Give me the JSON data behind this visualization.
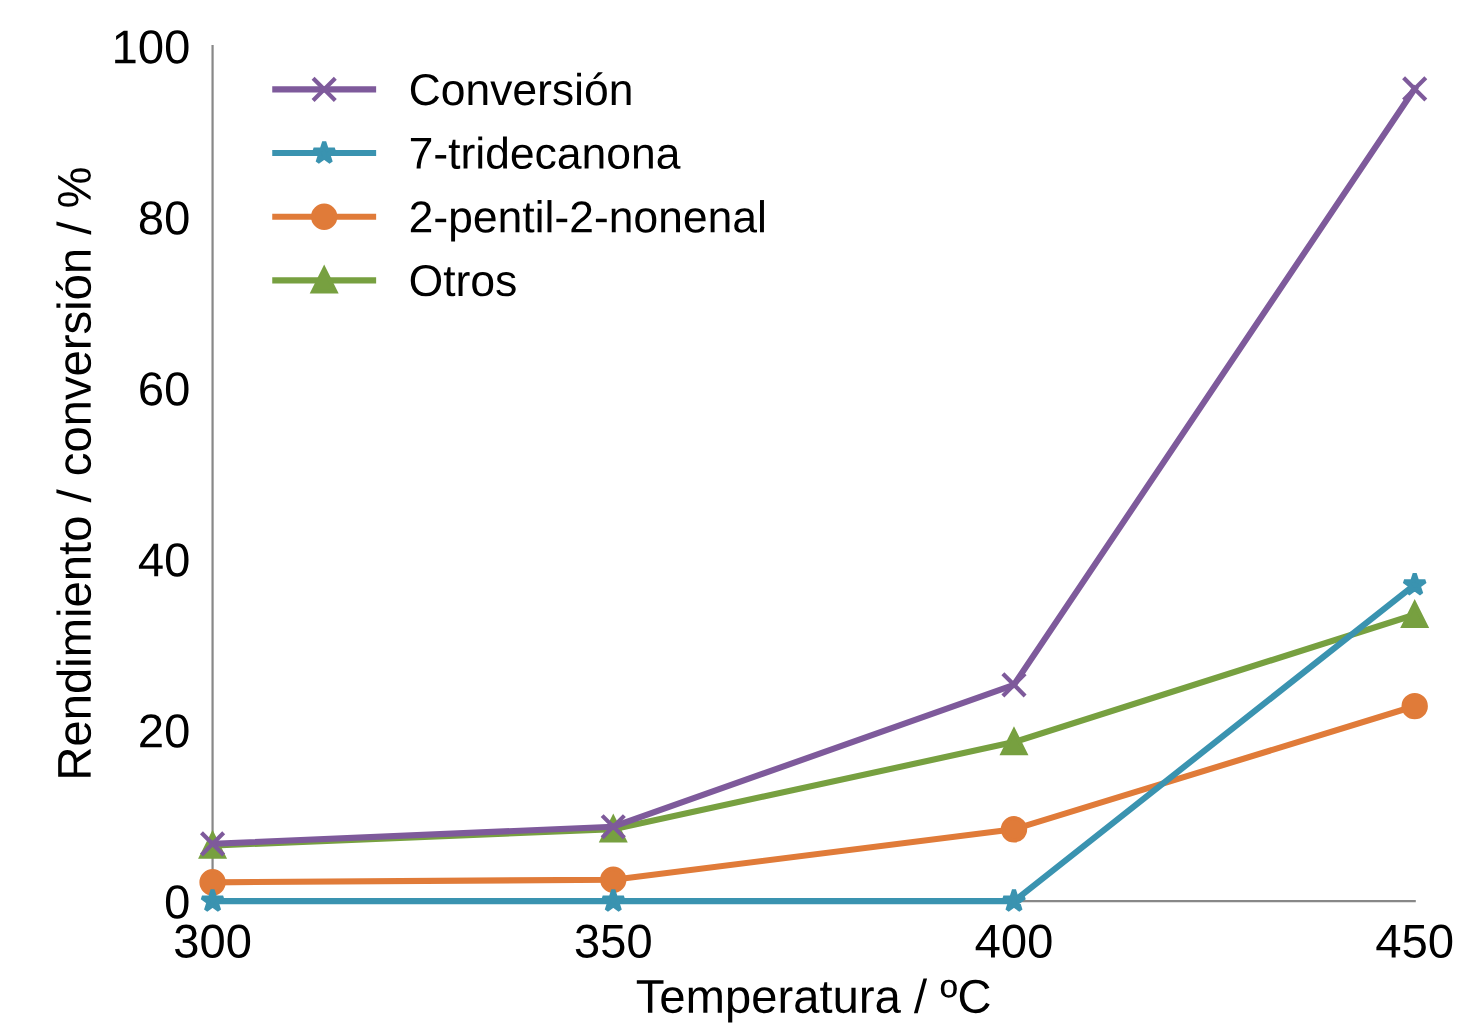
{
  "chart_data": {
    "type": "line",
    "xlabel": "Temperatura / ºC",
    "ylabel": "Rendimiento / conversión / %",
    "x": [
      300,
      350,
      400,
      450
    ],
    "series": [
      {
        "name": "Conversión",
        "color": "#7e5a9b",
        "marker": "cross",
        "values": [
          6.7,
          8.7,
          25.3,
          95.0
        ]
      },
      {
        "name": "7-tridecanona",
        "color": "#3a93b0",
        "marker": "star",
        "values": [
          0,
          0,
          0,
          37.0
        ]
      },
      {
        "name": "2-pentil-2-nonenal",
        "color": "#e07b39",
        "marker": "circle",
        "values": [
          2.2,
          2.5,
          8.4,
          22.8
        ]
      },
      {
        "name": "Otros",
        "color": "#77a040",
        "marker": "triangle",
        "values": [
          6.5,
          8.4,
          18.6,
          33.5
        ]
      }
    ],
    "xlim": [
      300,
      450
    ],
    "xticks": [
      300,
      350,
      400,
      450
    ],
    "ylim": [
      0,
      100
    ],
    "yticks": [
      0,
      20,
      40,
      60,
      80,
      100
    ],
    "grid": false,
    "legend": "top left",
    "line_style": "solid"
  }
}
